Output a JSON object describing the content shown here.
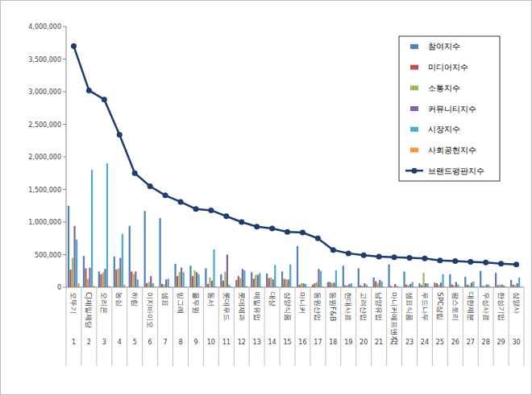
{
  "chart_data": {
    "type": "bar",
    "categories": [
      "오뚜기",
      "CJ제일제당",
      "오리온",
      "농심",
      "하림",
      "이지바이오",
      "샘표",
      "빙그레",
      "풀무원",
      "동서",
      "롯데푸드",
      "롯데제과",
      "매일유업",
      "대상",
      "삼양식품",
      "마니커",
      "동원산업",
      "동원F&B",
      "현대사료",
      "고려산업",
      "남양유업",
      "마니커에프앤지",
      "샘표식품",
      "푸드나무",
      "SPC삼립",
      "팜스토리",
      "대한제분",
      "우성사료",
      "한성기업",
      "삼양사"
    ],
    "ranks": [
      1,
      2,
      3,
      4,
      5,
      6,
      7,
      8,
      9,
      10,
      11,
      12,
      13,
      14,
      15,
      16,
      17,
      18,
      19,
      20,
      21,
      22,
      23,
      24,
      25,
      26,
      27,
      28,
      29,
      30
    ],
    "series": [
      {
        "name": "참여지수",
        "type": "bar",
        "color": "#4f81bd",
        "values": [
          1250000,
          480000,
          240000,
          470000,
          940000,
          1170000,
          1060000,
          360000,
          330000,
          290000,
          200000,
          110000,
          230000,
          210000,
          240000,
          630000,
          40000,
          80000,
          330000,
          290000,
          150000,
          350000,
          240000,
          60000,
          70000,
          200000,
          160000,
          250000,
          220000,
          110000
        ]
      },
      {
        "name": "미디어지수",
        "type": "bar",
        "color": "#c0504d",
        "values": [
          270000,
          290000,
          200000,
          270000,
          240000,
          60000,
          50000,
          170000,
          170000,
          50000,
          100000,
          170000,
          130000,
          140000,
          130000,
          40000,
          60000,
          80000,
          30000,
          30000,
          90000,
          20000,
          40000,
          30000,
          60000,
          40000,
          40000,
          20000,
          30000,
          40000
        ]
      },
      {
        "name": "소통지수",
        "type": "bar",
        "color": "#9bbb59",
        "values": [
          450000,
          130000,
          230000,
          290000,
          200000,
          80000,
          40000,
          230000,
          260000,
          150000,
          240000,
          140000,
          190000,
          150000,
          120000,
          60000,
          80000,
          60000,
          30000,
          20000,
          60000,
          10000,
          30000,
          220000,
          40000,
          30000,
          30000,
          20000,
          40000,
          30000
        ]
      },
      {
        "name": "커뮤니티지수",
        "type": "bar",
        "color": "#8064a2",
        "values": [
          940000,
          300000,
          280000,
          450000,
          240000,
          170000,
          120000,
          300000,
          230000,
          100000,
          500000,
          280000,
          190000,
          120000,
          120000,
          60000,
          280000,
          70000,
          50000,
          60000,
          110000,
          50000,
          50000,
          60000,
          70000,
          80000,
          70000,
          40000,
          40000,
          60000
        ]
      },
      {
        "name": "시장지수",
        "type": "bar",
        "color": "#4bacc6",
        "values": [
          730000,
          1800000,
          1900000,
          820000,
          120000,
          60000,
          130000,
          230000,
          200000,
          580000,
          40000,
          260000,
          220000,
          340000,
          350000,
          50000,
          250000,
          260000,
          60000,
          40000,
          90000,
          20000,
          80000,
          60000,
          200000,
          40000,
          90000,
          40000,
          30000,
          150000
        ]
      },
      {
        "name": "사회공헌지수",
        "type": "bar",
        "color": "#f79646",
        "values": [
          60000,
          20000,
          20000,
          40000,
          10000,
          10000,
          10000,
          10000,
          10000,
          10000,
          10000,
          20000,
          10000,
          10000,
          10000,
          5000,
          10000,
          10000,
          5000,
          5000,
          5000,
          5000,
          5000,
          5000,
          5000,
          5000,
          5000,
          5000,
          5000,
          5000
        ]
      },
      {
        "name": "브랜드평판지수",
        "type": "line",
        "color": "#1f3c6e",
        "marker": "circle",
        "values": [
          3700000,
          3020000,
          2880000,
          2340000,
          1750000,
          1550000,
          1410000,
          1310000,
          1200000,
          1180000,
          1090000,
          1000000,
          930000,
          900000,
          850000,
          840000,
          750000,
          570000,
          520000,
          490000,
          470000,
          460000,
          450000,
          440000,
          410000,
          400000,
          390000,
          380000,
          360000,
          350000
        ]
      }
    ],
    "ylim": [
      0,
      4000000
    ],
    "yticks": [
      0,
      {
        "value": 500000,
        "label": "500,000"
      },
      {
        "value": 1000000,
        "label": "1,000,000"
      },
      {
        "value": 1500000,
        "label": "1,500,000"
      },
      {
        "value": 2000000,
        "label": "2,000,000"
      },
      {
        "value": 2500000,
        "label": "2,500,000"
      },
      {
        "value": 3000000,
        "label": "3,000,000"
      },
      {
        "value": 3500000,
        "label": "3,500,000"
      },
      {
        "value": 4000000,
        "label": "4,000,000"
      }
    ],
    "grid": false,
    "legend": "top-right"
  }
}
